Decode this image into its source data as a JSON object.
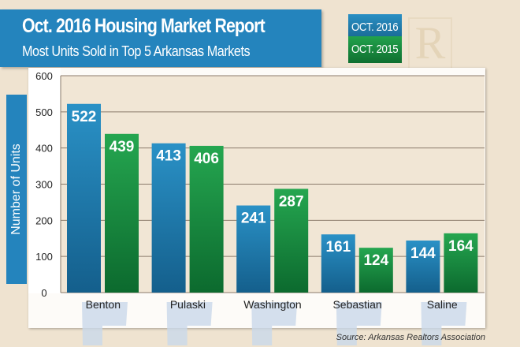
{
  "chart_data": {
    "type": "bar",
    "title": "Oct. 2016 Housing Market Report",
    "subtitle": "Most Units Sold in Top 5 Arkansas Markets",
    "ylabel": "Number of Units",
    "xlabel": "",
    "ylim": [
      0,
      600
    ],
    "yticks": [
      0,
      100,
      200,
      300,
      400,
      500,
      600
    ],
    "grid": true,
    "legend_placement": "top-right",
    "categories": [
      "Benton",
      "Pulaski",
      "Washington",
      "Sebastian",
      "Saline"
    ],
    "series": [
      {
        "name": "OCT. 2016",
        "color": "#1d76a8",
        "values": [
          522,
          413,
          241,
          161,
          144
        ]
      },
      {
        "name": "OCT. 2015",
        "color": "#1e9a46",
        "values": [
          439,
          406,
          287,
          124,
          164
        ]
      }
    ],
    "source": "Source: Arkansas Realtors Association"
  },
  "logo": "REALTOR"
}
